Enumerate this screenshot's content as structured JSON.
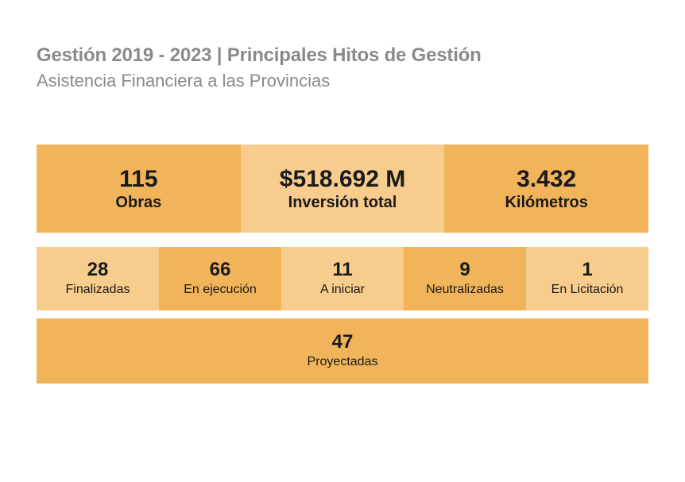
{
  "header": {
    "title": "Gestión 2019 - 2023 | Principales Hitos de Gestión",
    "subtitle": "Asistencia Financiera a las Provincias"
  },
  "summary": [
    {
      "value": "115",
      "label": "Obras"
    },
    {
      "value": "$518.692 M",
      "label": "Inversión total"
    },
    {
      "value": "3.432",
      "label": "Kilómetros"
    }
  ],
  "status": [
    {
      "value": "28",
      "label": "Finalizadas"
    },
    {
      "value": "66",
      "label": "En ejecución"
    },
    {
      "value": "11",
      "label": "A iniciar"
    },
    {
      "value": "9",
      "label": "Neutralizadas"
    },
    {
      "value": "1",
      "label": "En Licitación"
    }
  ],
  "projected": {
    "value": "47",
    "label": "Proyectadas"
  },
  "colors": {
    "dark_orange": "#f2b45a",
    "light_orange": "#f7cc8d",
    "title_gray": "#8a8a8a"
  }
}
